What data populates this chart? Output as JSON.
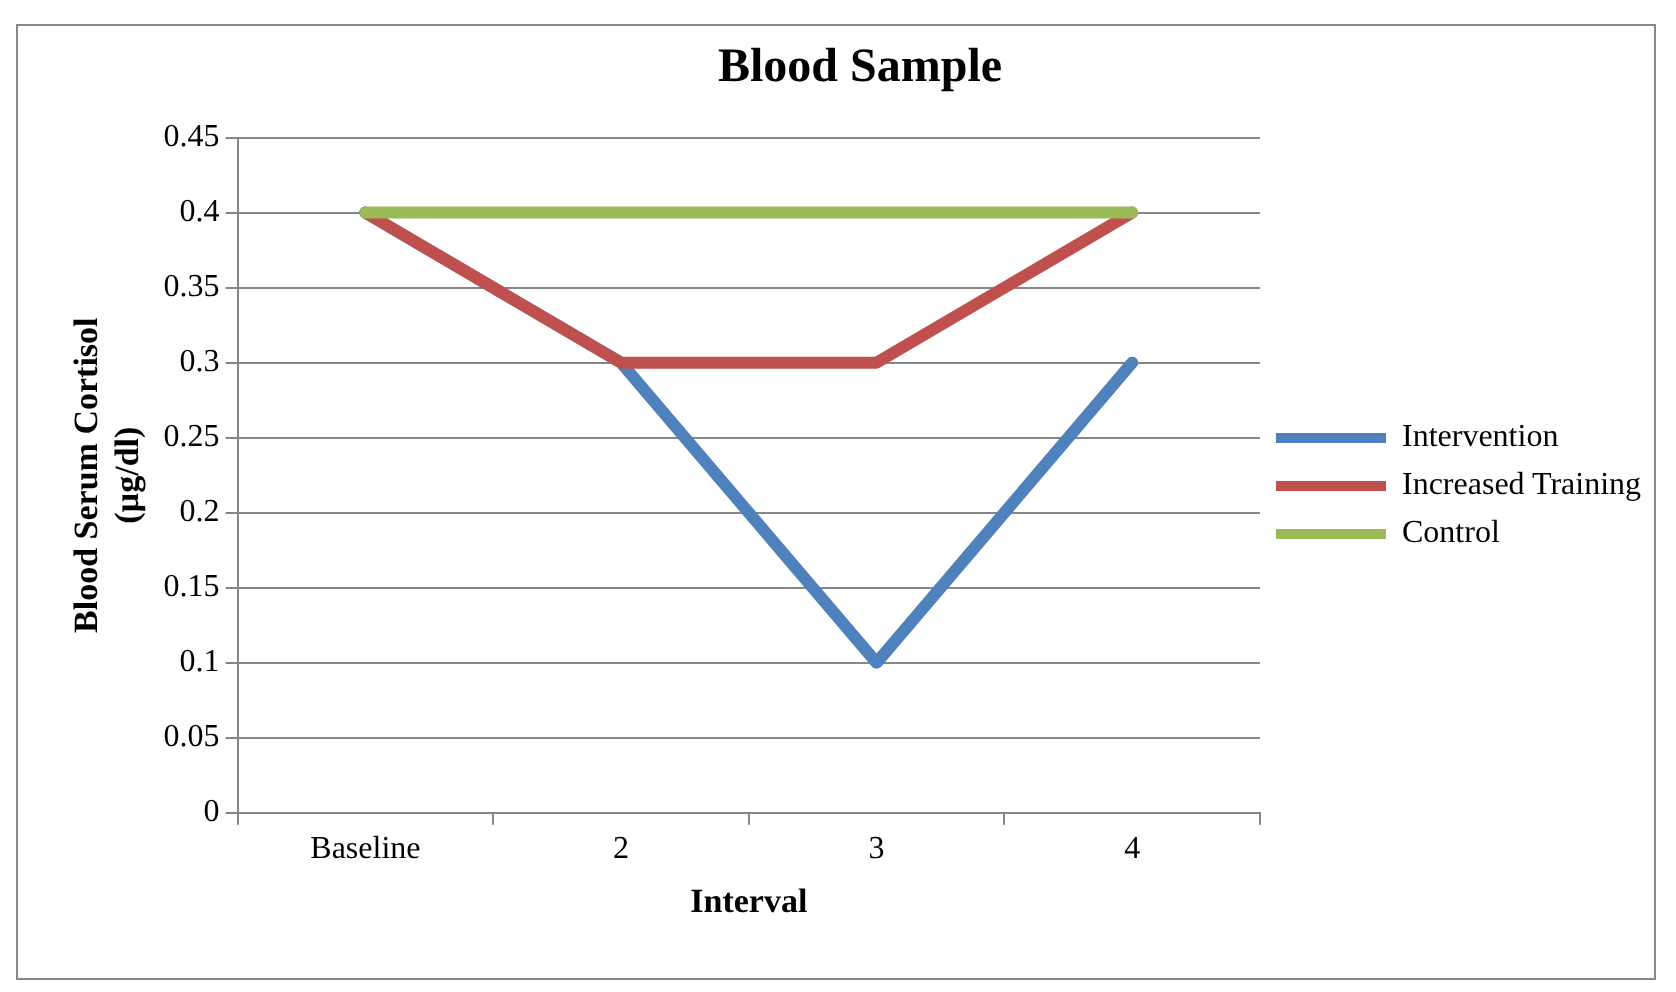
{
  "chart_data": {
    "type": "line",
    "title": "Blood Sample",
    "xlabel": "Interval",
    "ylabel": "Blood Serum Cortisol\n(µg/dl)",
    "categories": [
      "Baseline",
      "2",
      "3",
      "4"
    ],
    "series": [
      {
        "name": "Intervention",
        "color": "#4f81bd",
        "values": [
          0.4,
          0.3,
          0.1,
          0.3
        ]
      },
      {
        "name": "Increased Training",
        "color": "#c0504d",
        "values": [
          0.4,
          0.3,
          0.3,
          0.4
        ]
      },
      {
        "name": "Control",
        "color": "#9bbb59",
        "values": [
          0.4,
          0.4,
          0.4,
          0.4
        ]
      }
    ],
    "ylim": [
      0,
      0.45
    ],
    "yticks": [
      0,
      0.05,
      0.1,
      0.15,
      0.2,
      0.25,
      0.3,
      0.35,
      0.4,
      0.45
    ],
    "grid": "y",
    "legend": "right",
    "marker": "none",
    "line_style": "solid"
  }
}
